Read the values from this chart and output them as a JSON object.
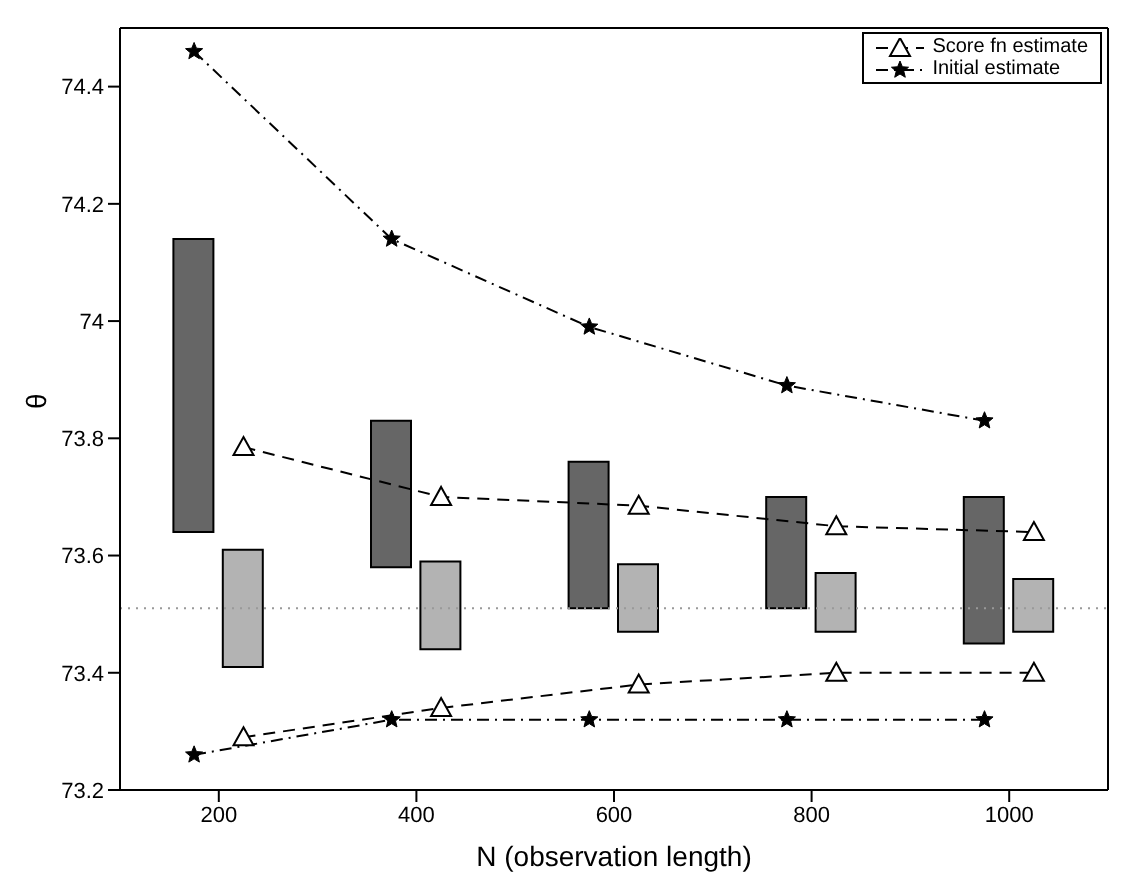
{
  "chart_data": {
    "type": "bar",
    "xlabel": "N (observation length)",
    "ylabel": "θ",
    "xlim": [
      100,
      1100
    ],
    "xticks": [
      200,
      400,
      600,
      800,
      1000
    ],
    "ylim": [
      73.2,
      74.5
    ],
    "yticks": [
      73.2,
      73.4,
      73.6,
      73.8,
      74,
      74.2,
      74.4
    ],
    "grid": false,
    "legend": "top right",
    "series": [
      {
        "color": "#666666",
        "x": [
          175,
          375,
          575,
          775,
          975
        ],
        "base": [
          73.64,
          73.58,
          73.51,
          73.51,
          73.45
        ],
        "values": [
          0.5,
          0.25,
          0.25,
          0.19,
          0.25
        ]
      },
      {
        "color": "#b3b3b3",
        "x": [
          225,
          425,
          625,
          825,
          1025
        ],
        "base": [
          73.41,
          73.44,
          73.47,
          73.47,
          73.47
        ],
        "values": [
          0.2,
          0.15,
          0.115,
          0.1,
          0.09
        ]
      },
      {
        "type": "line",
        "name": "Score fn estimate",
        "color": "#000000",
        "marker": "triangle",
        "line_style": "dashed",
        "x": [
          225,
          425,
          625,
          825,
          1025
        ],
        "values": [
          73.785,
          73.7,
          73.685,
          73.65,
          73.64
        ]
      },
      {
        "type": "line",
        "color": "#000000",
        "marker": "triangle",
        "line_style": "dashed",
        "x": [
          225,
          425,
          625,
          825,
          1025
        ],
        "values": [
          73.29,
          73.34,
          73.38,
          73.4,
          73.4
        ]
      },
      {
        "type": "line",
        "name": "Initial estimate",
        "color": "#000000",
        "marker": "star",
        "line_style": "dashdot",
        "x": [
          175,
          375,
          575,
          775,
          975
        ],
        "values": [
          74.46,
          74.14,
          73.99,
          73.89,
          73.83
        ]
      },
      {
        "type": "line",
        "color": "#000000",
        "marker": "star",
        "line_style": "dashdot",
        "x": [
          175,
          375,
          575,
          775,
          975
        ],
        "values": [
          73.26,
          73.32,
          73.32,
          73.32,
          73.32
        ]
      }
    ],
    "ref_lines": [
      {
        "axis": "y",
        "value": 73.51,
        "color": "#999999",
        "line_style": "dotted"
      }
    ]
  }
}
